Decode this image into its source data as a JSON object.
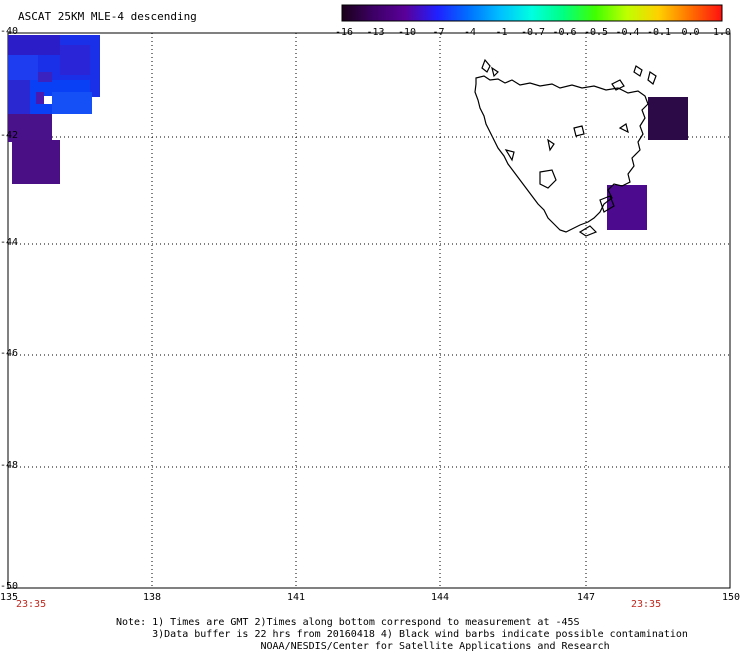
{
  "title": "ASCAT 25KM MLE-4 descending",
  "colorbar": {
    "ticks": [
      "-16",
      "-13",
      "-10",
      "-7",
      "-4",
      "-1",
      "-0.7",
      "-0.6",
      "-0.5",
      "-0.4",
      "-0.1",
      "0.0",
      "1.0"
    ],
    "colors": [
      "#1a001a",
      "#3d0066",
      "#5a0099",
      "#2020ff",
      "#0070ff",
      "#00c0ff",
      "#00ffe0",
      "#00ff80",
      "#40ff00",
      "#c0ff00",
      "#ffd000",
      "#ff7000",
      "#ff1010"
    ]
  },
  "axes": {
    "lat_labels": [
      "-40",
      "-42",
      "-44",
      "-46",
      "-48",
      "-50"
    ],
    "lon_labels": [
      "135",
      "138",
      "141",
      "144",
      "147",
      "150"
    ],
    "time_labels": [
      "23:35",
      "23:35"
    ]
  },
  "map": {
    "region": "Tasmania",
    "cell_colors": {
      "blue": "#0a32f0",
      "deep_blue": "#1e1ee6",
      "purple": "#4a0f8c",
      "dark_purple": "#2a0a4a",
      "white": "#ffffff"
    }
  },
  "notes": [
    "Note: 1) Times are GMT 2)Times along bottom correspond to measurement at -45S",
    "      3)Data buffer is 22 hrs from 20160418 4) Black wind barbs indicate possible contamination",
    "                        NOAA/NESDIS/Center for Satellite Applications and Research"
  ]
}
